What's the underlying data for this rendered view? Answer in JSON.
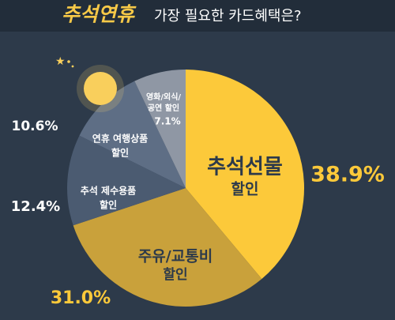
{
  "chart_data": {
    "type": "pie",
    "title": {
      "highlight": "추석연휴",
      "rest": "가장 필요한 카드혜택은?"
    },
    "categories": [
      [
        "추석선물",
        "할인"
      ],
      [
        "주유/교통비",
        "할인"
      ],
      [
        "추석 제수용품",
        "할인"
      ],
      [
        "연휴 여행상품",
        "할인"
      ],
      [
        "영화/외식/",
        "공연 할인"
      ]
    ],
    "values": [
      38.9,
      31.0,
      12.4,
      10.6,
      7.1
    ],
    "value_labels": [
      "38.9%",
      "31.0%",
      "12.4%",
      "10.6%",
      "7.1%"
    ],
    "colors": [
      "#fcc93a",
      "#c9a13b",
      "#4b5b71",
      "#5e6e85",
      "#8f97a4"
    ]
  }
}
